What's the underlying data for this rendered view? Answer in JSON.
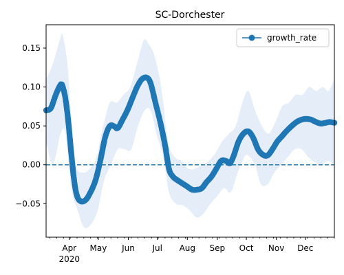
{
  "chart_data": {
    "type": "line",
    "title": "SC-Dorchester",
    "xlabel": "",
    "ylabel": "",
    "xlim": [
      "2020-03-08",
      "2020-12-31"
    ],
    "ylim": [
      -0.093,
      0.18
    ],
    "x_ticks": [
      {
        "date": "2020-04-01",
        "label": "Apr",
        "sublabel": "2020"
      },
      {
        "date": "2020-05-01",
        "label": "May"
      },
      {
        "date": "2020-06-01",
        "label": "Jun"
      },
      {
        "date": "2020-07-01",
        "label": "Jul"
      },
      {
        "date": "2020-08-01",
        "label": "Aug"
      },
      {
        "date": "2020-09-01",
        "label": "Sep"
      },
      {
        "date": "2020-10-01",
        "label": "Oct"
      },
      {
        "date": "2020-11-01",
        "label": "Nov"
      },
      {
        "date": "2020-12-01",
        "label": "Dec"
      }
    ],
    "y_ticks": [
      {
        "value": -0.05,
        "label": "−0.05"
      },
      {
        "value": 0.0,
        "label": "0.00"
      },
      {
        "value": 0.05,
        "label": "0.05"
      },
      {
        "value": 0.1,
        "label": "0.10"
      },
      {
        "value": 0.15,
        "label": "0.15"
      }
    ],
    "reference_line": {
      "value": 0,
      "style": "dashed"
    },
    "grid": false,
    "legend": {
      "placement": "top-right"
    },
    "colors": {
      "series": "#1f77b4",
      "band": "#dce8f5"
    },
    "series": [
      {
        "name": "growth_rate",
        "marker": "circle",
        "points": [
          [
            "2020-03-08",
            0.07
          ],
          [
            "2020-03-13",
            0.073
          ],
          [
            "2020-03-18",
            0.09
          ],
          [
            "2020-03-23",
            0.103
          ],
          [
            "2020-03-25",
            0.101
          ],
          [
            "2020-03-28",
            0.085
          ],
          [
            "2020-03-31",
            0.055
          ],
          [
            "2020-04-03",
            0.015
          ],
          [
            "2020-04-06",
            -0.02
          ],
          [
            "2020-04-09",
            -0.04
          ],
          [
            "2020-04-13",
            -0.047
          ],
          [
            "2020-04-18",
            -0.045
          ],
          [
            "2020-04-23",
            -0.035
          ],
          [
            "2020-04-28",
            -0.02
          ],
          [
            "2020-05-03",
            0.005
          ],
          [
            "2020-05-08",
            0.035
          ],
          [
            "2020-05-13",
            0.05
          ],
          [
            "2020-05-18",
            0.049
          ],
          [
            "2020-05-21",
            0.047
          ],
          [
            "2020-05-26",
            0.058
          ],
          [
            "2020-05-31",
            0.07
          ],
          [
            "2020-06-05",
            0.085
          ],
          [
            "2020-06-10",
            0.1
          ],
          [
            "2020-06-15",
            0.11
          ],
          [
            "2020-06-20",
            0.112
          ],
          [
            "2020-06-24",
            0.105
          ],
          [
            "2020-06-29",
            0.08
          ],
          [
            "2020-07-04",
            0.055
          ],
          [
            "2020-07-09",
            0.025
          ],
          [
            "2020-07-13",
            -0.005
          ],
          [
            "2020-07-17",
            -0.015
          ],
          [
            "2020-07-22",
            -0.02
          ],
          [
            "2020-07-27",
            -0.024
          ],
          [
            "2020-08-01",
            -0.028
          ],
          [
            "2020-08-06",
            -0.032
          ],
          [
            "2020-08-11",
            -0.032
          ],
          [
            "2020-08-16",
            -0.03
          ],
          [
            "2020-08-21",
            -0.022
          ],
          [
            "2020-08-26",
            -0.015
          ],
          [
            "2020-08-31",
            -0.005
          ],
          [
            "2020-09-05",
            0.005
          ],
          [
            "2020-09-10",
            0.005
          ],
          [
            "2020-09-14",
            0.002
          ],
          [
            "2020-09-18",
            0.012
          ],
          [
            "2020-09-23",
            0.03
          ],
          [
            "2020-09-28",
            0.04
          ],
          [
            "2020-10-03",
            0.043
          ],
          [
            "2020-10-08",
            0.035
          ],
          [
            "2020-10-13",
            0.02
          ],
          [
            "2020-10-18",
            0.013
          ],
          [
            "2020-10-23",
            0.012
          ],
          [
            "2020-10-28",
            0.02
          ],
          [
            "2020-11-02",
            0.03
          ],
          [
            "2020-11-07",
            0.037
          ],
          [
            "2020-11-12",
            0.044
          ],
          [
            "2020-11-17",
            0.05
          ],
          [
            "2020-11-22",
            0.055
          ],
          [
            "2020-11-27",
            0.058
          ],
          [
            "2020-12-02",
            0.059
          ],
          [
            "2020-12-07",
            0.058
          ],
          [
            "2020-12-12",
            0.055
          ],
          [
            "2020-12-17",
            0.053
          ],
          [
            "2020-12-22",
            0.054
          ],
          [
            "2020-12-26",
            0.055
          ],
          [
            "2020-12-31",
            0.054
          ]
        ],
        "band_lower": [
          [
            "2020-03-08",
            0.03
          ],
          [
            "2020-03-15",
            0.0
          ],
          [
            "2020-03-23",
            0.04
          ],
          [
            "2020-03-28",
            0.04
          ],
          [
            "2020-04-03",
            -0.03
          ],
          [
            "2020-04-10",
            -0.06
          ],
          [
            "2020-04-16",
            -0.08
          ],
          [
            "2020-04-23",
            -0.077
          ],
          [
            "2020-04-30",
            -0.06
          ],
          [
            "2020-05-07",
            -0.02
          ],
          [
            "2020-05-14",
            0.0
          ],
          [
            "2020-05-21",
            0.02
          ],
          [
            "2020-05-28",
            0.02
          ],
          [
            "2020-06-04",
            0.02
          ],
          [
            "2020-06-11",
            0.05
          ],
          [
            "2020-06-18",
            0.07
          ],
          [
            "2020-06-24",
            0.07
          ],
          [
            "2020-06-30",
            0.04
          ],
          [
            "2020-07-07",
            0.01
          ],
          [
            "2020-07-13",
            -0.035
          ],
          [
            "2020-07-20",
            -0.05
          ],
          [
            "2020-07-27",
            -0.052
          ],
          [
            "2020-08-03",
            -0.058
          ],
          [
            "2020-08-11",
            -0.068
          ],
          [
            "2020-08-18",
            -0.062
          ],
          [
            "2020-08-25",
            -0.05
          ],
          [
            "2020-09-01",
            -0.04
          ],
          [
            "2020-09-08",
            -0.03
          ],
          [
            "2020-09-15",
            -0.035
          ],
          [
            "2020-09-22",
            -0.01
          ],
          [
            "2020-09-29",
            0.01
          ],
          [
            "2020-10-03",
            0.012
          ],
          [
            "2020-10-10",
            0.0
          ],
          [
            "2020-10-16",
            -0.025
          ],
          [
            "2020-10-23",
            -0.025
          ],
          [
            "2020-10-30",
            -0.01
          ],
          [
            "2020-11-06",
            0.0
          ],
          [
            "2020-11-13",
            0.01
          ],
          [
            "2020-11-20",
            0.02
          ],
          [
            "2020-11-27",
            0.02
          ],
          [
            "2020-12-04",
            0.01
          ],
          [
            "2020-12-11",
            0.003
          ],
          [
            "2020-12-18",
            0.0
          ],
          [
            "2020-12-24",
            0.005
          ],
          [
            "2020-12-31",
            0.0
          ]
        ],
        "band_upper": [
          [
            "2020-03-08",
            0.11
          ],
          [
            "2020-03-15",
            0.13
          ],
          [
            "2020-03-22",
            0.16
          ],
          [
            "2020-03-25",
            0.167
          ],
          [
            "2020-03-30",
            0.13
          ],
          [
            "2020-04-03",
            0.06
          ],
          [
            "2020-04-08",
            0.0
          ],
          [
            "2020-04-15",
            -0.01
          ],
          [
            "2020-04-22",
            -0.005
          ],
          [
            "2020-04-29",
            0.01
          ],
          [
            "2020-05-06",
            0.05
          ],
          [
            "2020-05-13",
            0.08
          ],
          [
            "2020-05-20",
            0.08
          ],
          [
            "2020-05-27",
            0.09
          ],
          [
            "2020-06-03",
            0.1
          ],
          [
            "2020-06-10",
            0.13
          ],
          [
            "2020-06-17",
            0.16
          ],
          [
            "2020-06-22",
            0.155
          ],
          [
            "2020-06-28",
            0.14
          ],
          [
            "2020-07-05",
            0.1
          ],
          [
            "2020-07-12",
            0.03
          ],
          [
            "2020-07-19",
            0.01
          ],
          [
            "2020-07-26",
            0.005
          ],
          [
            "2020-08-02",
            -0.005
          ],
          [
            "2020-08-09",
            -0.005
          ],
          [
            "2020-08-16",
            0.0
          ],
          [
            "2020-08-23",
            0.005
          ],
          [
            "2020-08-30",
            0.015
          ],
          [
            "2020-09-06",
            0.03
          ],
          [
            "2020-09-13",
            0.04
          ],
          [
            "2020-09-20",
            0.05
          ],
          [
            "2020-09-27",
            0.08
          ],
          [
            "2020-10-03",
            0.095
          ],
          [
            "2020-10-10",
            0.07
          ],
          [
            "2020-10-17",
            0.05
          ],
          [
            "2020-10-24",
            0.04
          ],
          [
            "2020-10-31",
            0.055
          ],
          [
            "2020-11-07",
            0.075
          ],
          [
            "2020-11-14",
            0.08
          ],
          [
            "2020-11-21",
            0.09
          ],
          [
            "2020-11-28",
            0.09
          ],
          [
            "2020-12-05",
            0.1
          ],
          [
            "2020-12-12",
            0.095
          ],
          [
            "2020-12-19",
            0.1
          ],
          [
            "2020-12-25",
            0.095
          ],
          [
            "2020-12-31",
            0.11
          ]
        ]
      }
    ]
  }
}
